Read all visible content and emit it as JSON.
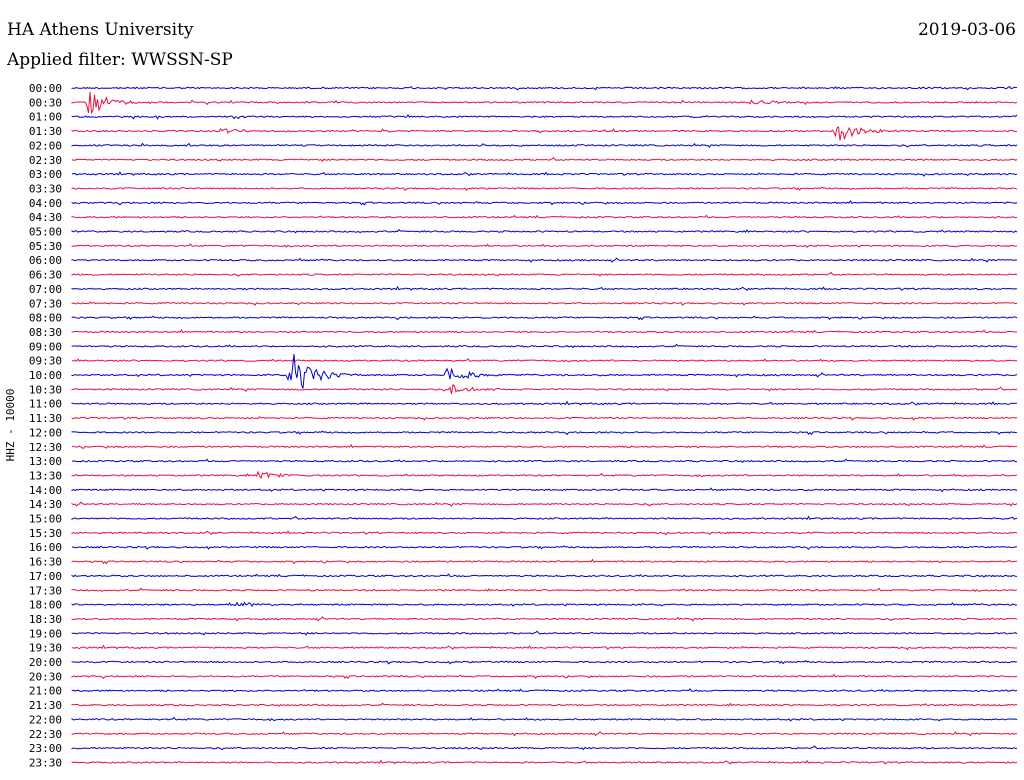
{
  "header": {
    "station_title": "HA Athens University",
    "date": "2019-03-06",
    "filter_label": "Applied filter: WWSSN-SP"
  },
  "chart_data": {
    "type": "line",
    "ylabel": "HHZ - 10000",
    "colors": {
      "even_rows": "#0000cc",
      "odd_rows": "#e8103c"
    },
    "row_labels": [
      "00:00",
      "00:30",
      "01:00",
      "01:30",
      "02:00",
      "02:30",
      "03:00",
      "03:30",
      "04:00",
      "04:30",
      "05:00",
      "05:30",
      "06:00",
      "06:30",
      "07:00",
      "07:30",
      "08:00",
      "08:30",
      "09:00",
      "09:30",
      "10:00",
      "10:30",
      "11:00",
      "11:30",
      "12:00",
      "12:30",
      "13:00",
      "13:30",
      "14:00",
      "14:30",
      "15:00",
      "15:30",
      "16:00",
      "16:30",
      "17:00",
      "17:30",
      "18:00",
      "18:30",
      "19:00",
      "19:30",
      "20:00",
      "20:30",
      "21:00",
      "21:30",
      "22:00",
      "22:30",
      "23:00",
      "23:30"
    ],
    "minutes_per_row": 30,
    "events": [
      {
        "row": "00:30",
        "minute": 0.5,
        "amplitude": 16
      },
      {
        "row": "00:30",
        "minute": 21.5,
        "amplitude": 3
      },
      {
        "row": "01:30",
        "minute": 4.7,
        "amplitude": 4
      },
      {
        "row": "01:30",
        "minute": 24.2,
        "amplitude": 14
      },
      {
        "row": "10:00",
        "minute": 6.9,
        "amplitude": 30
      },
      {
        "row": "10:00",
        "minute": 11.9,
        "amplitude": 10
      },
      {
        "row": "10:30",
        "minute": 12.0,
        "amplitude": 7
      },
      {
        "row": "13:30",
        "minute": 5.9,
        "amplitude": 4
      },
      {
        "row": "18:00",
        "minute": 5.2,
        "amplitude": 3
      }
    ]
  }
}
